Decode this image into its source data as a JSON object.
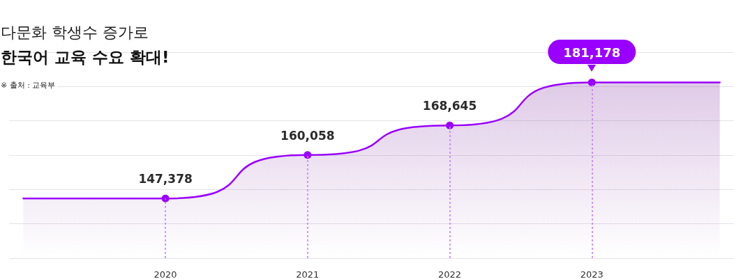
{
  "chart_data": {
    "type": "area",
    "subtitle": "다문화 학생수 증가로",
    "title": "한국어 교육 수요 확대!",
    "annotations": [
      "※ 출처 : 교육부"
    ],
    "x": [
      2019,
      2020,
      2021,
      2022,
      2023,
      2023.9
    ],
    "series": [
      {
        "color": "#9900ff",
        "values": [
          147378,
          147378,
          160058,
          168645,
          181178,
          181178
        ],
        "value_labels": [
          null,
          "147,378",
          "160,058",
          "168,645",
          "181,178",
          null
        ]
      }
    ],
    "xlim": [
      2018.9,
      2024
    ],
    "xticks": [
      2020,
      2021,
      2022,
      2023
    ],
    "ylim": [
      130000,
      190000
    ],
    "yticks": [
      {
        "value": 130000,
        "label": null
      },
      {
        "value": 140000,
        "label": null
      },
      {
        "value": 150000,
        "label": null
      },
      {
        "value": 160000,
        "label": null
      },
      {
        "value": 170000,
        "label": null
      },
      {
        "value": 180000,
        "label": null
      },
      {
        "value": 190000,
        "label": null
      }
    ],
    "ref_lines": [
      {
        "axis": "x",
        "value": 2020,
        "color": "#c77dff",
        "line_style": "dashed"
      },
      {
        "axis": "x",
        "value": 2021,
        "color": "#c77dff",
        "line_style": "dashed"
      },
      {
        "axis": "x",
        "value": 2022,
        "color": "#c77dff",
        "line_style": "dashed"
      },
      {
        "axis": "x",
        "value": 2023,
        "color": "#c77dff",
        "line_style": "dashed"
      }
    ],
    "tick_labels": "x",
    "grid": "y",
    "marker": "circle",
    "line_style": "solid"
  }
}
